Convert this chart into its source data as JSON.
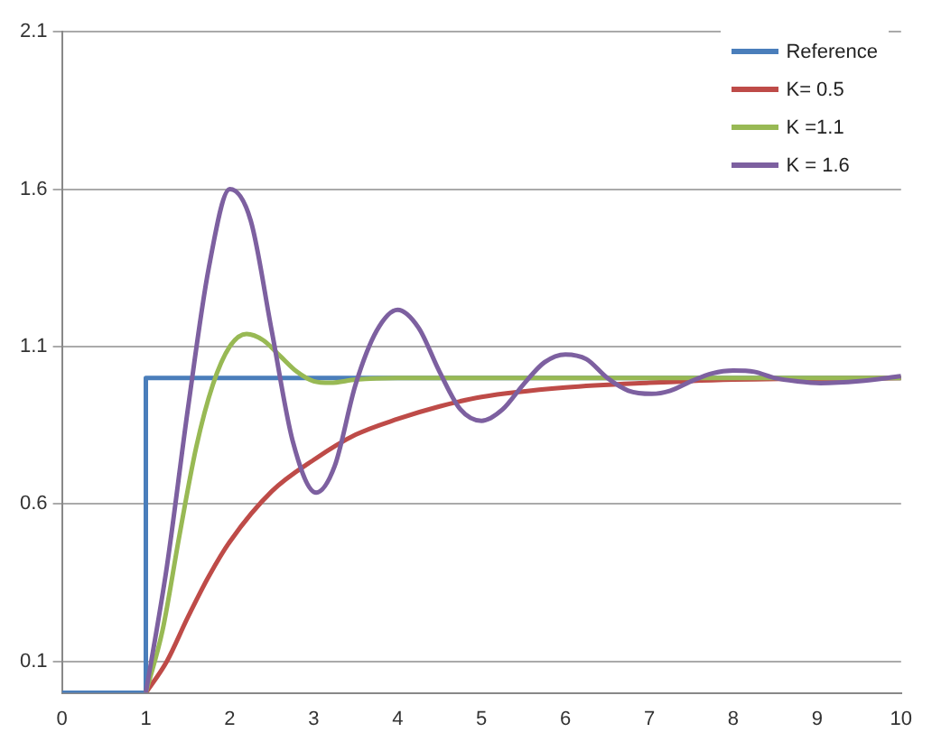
{
  "chart_data": {
    "type": "line",
    "xlim": [
      0,
      10
    ],
    "xticks": [
      0,
      1,
      2,
      3,
      4,
      5,
      6,
      7,
      8,
      9,
      10
    ],
    "ylim": [
      0,
      2.1
    ],
    "yticks": [
      0.1,
      0.6,
      1.1,
      1.6,
      2.1
    ],
    "grid": "y",
    "legend": "top right",
    "marker": "none",
    "line_style": "solid",
    "series": [
      {
        "name": "Reference",
        "color": "#4a7ebb",
        "x": [
          0,
          1,
          1,
          10
        ],
        "values": [
          0,
          0,
          1,
          1
        ]
      },
      {
        "name": "K= 0.5",
        "color": "#be4b48",
        "x": [
          1,
          1.25,
          1.5,
          1.75,
          2,
          2.5,
          3,
          3.5,
          4,
          4.5,
          5,
          6,
          7,
          8,
          10
        ],
        "values": [
          0,
          0.1,
          0.24,
          0.37,
          0.48,
          0.64,
          0.74,
          0.82,
          0.87,
          0.91,
          0.94,
          0.97,
          0.985,
          0.995,
          1
        ]
      },
      {
        "name": "K =1.1",
        "color": "#98b954",
        "x": [
          1,
          1.2,
          1.4,
          1.6,
          1.8,
          2,
          2.2,
          2.4,
          2.6,
          2.8,
          3,
          3.2,
          3.5,
          4,
          10
        ],
        "values": [
          0,
          0.2,
          0.5,
          0.78,
          0.98,
          1.1,
          1.14,
          1.12,
          1.07,
          1.02,
          0.99,
          0.985,
          0.995,
          1,
          1
        ]
      },
      {
        "name": "K = 1.6",
        "color": "#7d60a0",
        "x": [
          1,
          1.25,
          1.5,
          1.75,
          2,
          2.25,
          2.5,
          2.75,
          3.03,
          3.25,
          3.5,
          3.75,
          4,
          4.25,
          4.5,
          4.75,
          5,
          5.25,
          5.5,
          5.75,
          6,
          6.25,
          6.5,
          6.75,
          7.03,
          7.25,
          7.5,
          7.75,
          8,
          8.25,
          8.5,
          8.75,
          9.04,
          9.5,
          10
        ],
        "values": [
          0,
          0.4,
          0.9,
          1.35,
          1.6,
          1.5,
          1.15,
          0.8,
          0.636,
          0.72,
          0.98,
          1.15,
          1.217,
          1.16,
          1.02,
          0.9,
          0.864,
          0.9,
          0.98,
          1.05,
          1.075,
          1.06,
          1,
          0.96,
          0.95,
          0.96,
          0.99,
          1.015,
          1.024,
          1.02,
          1,
          0.99,
          0.984,
          0.99,
          1.006
        ]
      }
    ]
  }
}
